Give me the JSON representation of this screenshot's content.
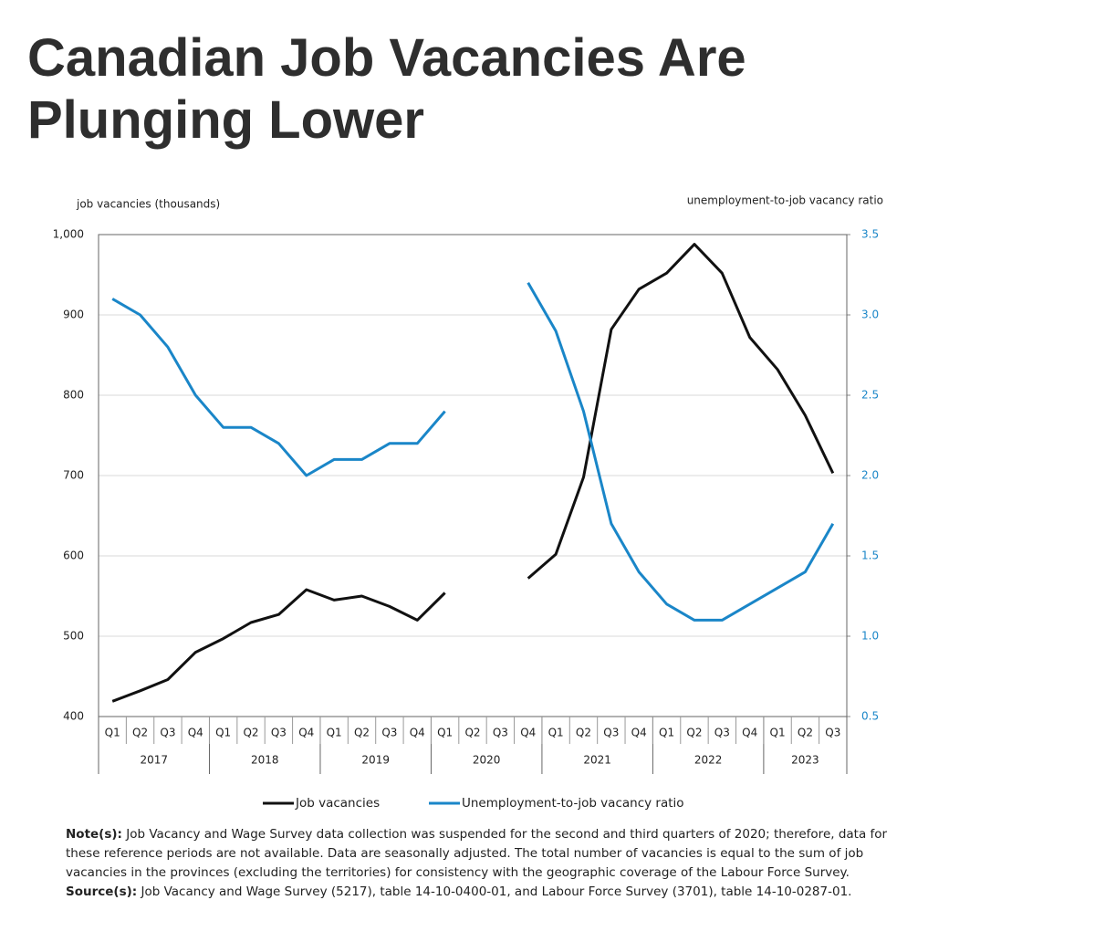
{
  "title": "Canadian Job Vacancies Are Plunging Lower",
  "chart_data": {
    "type": "line",
    "y_label": "job vacancies (thousands)",
    "y2_label": "unemployment-to-job vacancy ratio",
    "groups": [
      {
        "label": "2017",
        "quarters": [
          "Q1",
          "Q2",
          "Q3",
          "Q4"
        ]
      },
      {
        "label": "2018",
        "quarters": [
          "Q1",
          "Q2",
          "Q3",
          "Q4"
        ]
      },
      {
        "label": "2019",
        "quarters": [
          "Q1",
          "Q2",
          "Q3",
          "Q4"
        ]
      },
      {
        "label": "2020",
        "quarters": [
          "Q1",
          "Q2",
          "Q3",
          "Q4"
        ]
      },
      {
        "label": "2021",
        "quarters": [
          "Q1",
          "Q2",
          "Q3",
          "Q4"
        ]
      },
      {
        "label": "2022",
        "quarters": [
          "Q1",
          "Q2",
          "Q3",
          "Q4"
        ]
      },
      {
        "label": "2023",
        "quarters": [
          "Q1",
          "Q2",
          "Q3"
        ]
      }
    ],
    "series": [
      {
        "name": "Job vacancies",
        "color": "#111111",
        "values": [
          419,
          432,
          446,
          480,
          497,
          517,
          527,
          558,
          545,
          550,
          537,
          520,
          554,
          null,
          null,
          572,
          602,
          698,
          882,
          932,
          952,
          988,
          952,
          872,
          832,
          775,
          703
        ]
      },
      {
        "name": "Unemployment-to-job vacancy ratio",
        "color": "#1a86c8",
        "axis": "y2",
        "values": [
          3.1,
          3.0,
          2.8,
          2.5,
          2.3,
          2.3,
          2.2,
          2.0,
          2.1,
          2.1,
          2.2,
          2.2,
          2.4,
          null,
          null,
          3.2,
          2.9,
          2.4,
          1.7,
          1.4,
          1.2,
          1.1,
          1.1,
          1.2,
          1.3,
          1.4,
          1.7
        ]
      }
    ],
    "ylim": [
      400,
      1000
    ],
    "yticks": [
      400,
      500,
      600,
      700,
      800,
      900,
      {
        "value": 1000,
        "label": "1,000"
      }
    ],
    "y2lim": [
      0.5,
      3.5
    ],
    "y2ticks": [
      0.5,
      {
        "value": 1,
        "label": "1.0"
      },
      1.5,
      {
        "value": 2,
        "label": "2.0"
      },
      2.5,
      {
        "value": 3,
        "label": "3.0"
      },
      3.5
    ],
    "grid": true,
    "note": {
      "label": "Note(s):",
      "text": "Job Vacancy and Wage Survey data collection was suspended for the second and third quarters of 2020; therefore, data for these reference periods are not available. Data are seasonally adjusted. The total number of vacancies is equal to the sum of job vacancies in the provinces (excluding the territories) for consistency with the geographic coverage of the Labour Force Survey."
    },
    "source": {
      "label": "Source(s):",
      "text": "Job Vacancy and Wage Survey (5217), table 14-10-0400-01, and Labour Force Survey (3701), table 14-10-0287-01."
    }
  }
}
